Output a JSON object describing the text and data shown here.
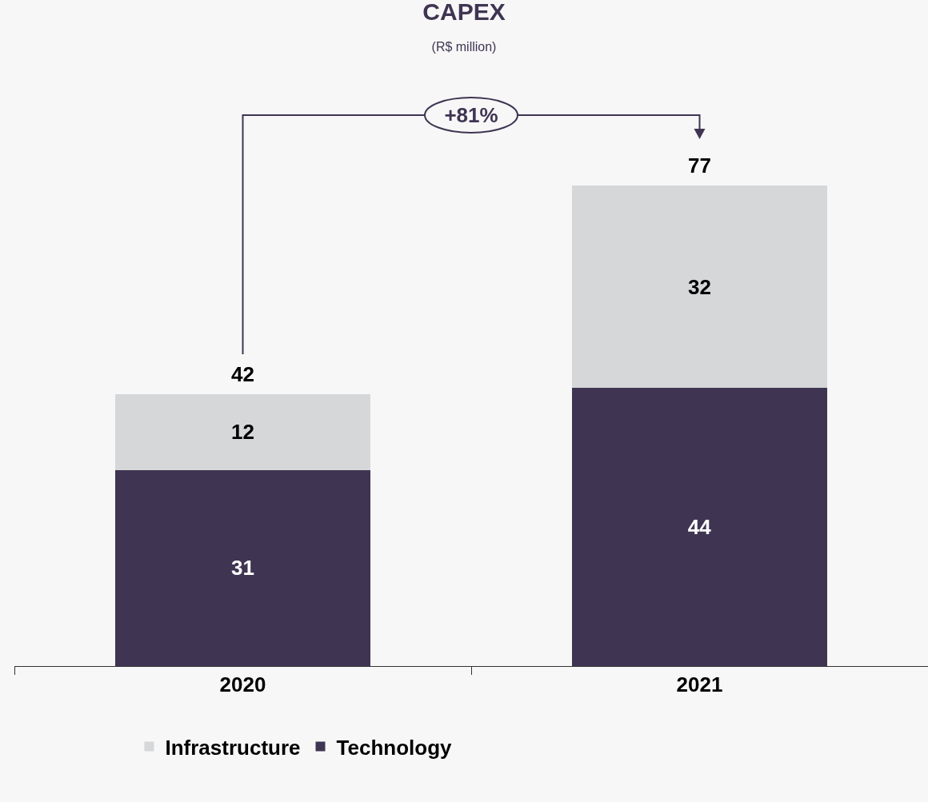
{
  "chart_data": {
    "type": "bar",
    "title": "CAPEX",
    "subtitle": "(R$ million)",
    "categories": [
      "2020",
      "2021"
    ],
    "stacked": true,
    "series": [
      {
        "name": "Technology",
        "color": "#3f3552",
        "values": [
          31,
          44
        ]
      },
      {
        "name": "Infrastructure",
        "color": "#d6d7d9",
        "values": [
          12,
          32
        ]
      }
    ],
    "totals": [
      "42",
      "77"
    ],
    "data_labels": true,
    "annotations": [
      "+81%"
    ],
    "legend": "bottom",
    "grid": false
  }
}
